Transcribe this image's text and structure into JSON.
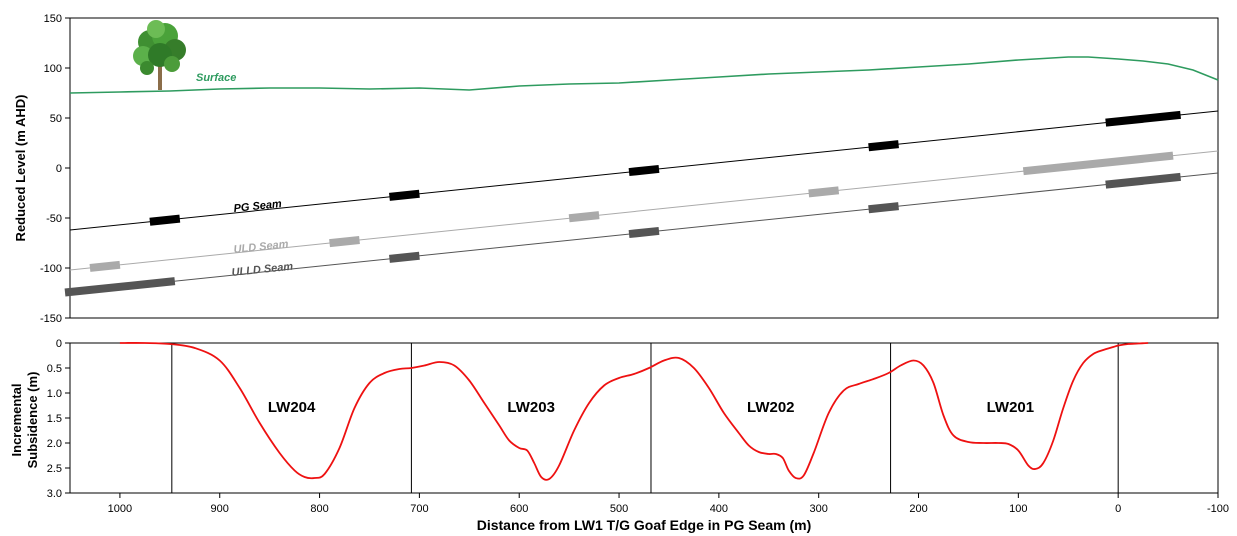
{
  "chart_data": [
    {
      "type": "line",
      "ylabel": "Reduced Level (m AHD)",
      "xlim": [
        1050,
        -100
      ],
      "ylim": [
        -150,
        150
      ],
      "y_ticks": [
        "150",
        "100",
        "50",
        "0",
        "-50",
        "-100",
        "-150"
      ],
      "series": [
        {
          "name": "Surface",
          "color": "#2e9b5f",
          "x": [
            1050,
            1000,
            950,
            900,
            850,
            800,
            750,
            700,
            650,
            600,
            550,
            500,
            450,
            400,
            350,
            300,
            250,
            200,
            150,
            100,
            50,
            30,
            0,
            -25,
            -50,
            -75,
            -100
          ],
          "y": [
            75,
            76,
            77,
            79,
            80,
            80,
            79,
            80,
            78,
            82,
            84,
            85,
            88,
            91,
            94,
            96,
            98,
            101,
            104,
            108,
            111,
            111,
            109,
            107,
            104,
            98,
            88
          ]
        },
        {
          "name": "PG Seam",
          "color": "#000000",
          "x": [
            1050,
            -100
          ],
          "y": [
            -62,
            57
          ]
        },
        {
          "name": "ULD Seam",
          "color": "#aaaaaa",
          "x": [
            1050,
            -100
          ],
          "y": [
            -102,
            17
          ]
        },
        {
          "name": "ULLD Seam",
          "color": "#555555",
          "x": [
            1050,
            -100
          ],
          "y": [
            -124,
            -5
          ]
        }
      ],
      "markers": [
        {
          "seam": "PG Seam",
          "color": "#000000",
          "x": [
            955,
            715,
            475,
            235,
            -25
          ],
          "len": [
            30,
            30,
            30,
            30,
            75
          ]
        },
        {
          "seam": "ULD Seam",
          "color": "#aaaaaa",
          "x": [
            1015,
            775,
            535,
            295,
            20
          ],
          "len": [
            30,
            30,
            30,
            30,
            150
          ]
        },
        {
          "seam": "ULLD Seam",
          "color": "#555555",
          "x": [
            1000,
            715,
            475,
            235,
            -25
          ],
          "len": [
            110,
            30,
            30,
            30,
            75
          ]
        }
      ],
      "labels": {
        "surface": "Surface",
        "pg": "PG Seam",
        "uld": "ULD Seam",
        "ulld": "ULLD Seam"
      }
    },
    {
      "type": "line",
      "xlabel": "Distance from LW1  T/G Goaf Edge in PG Seam (m)",
      "ylabel": "Incremental Subsidence (m)",
      "ylabel_lines": [
        "Incremental",
        "Subsidence (m)"
      ],
      "xlim": [
        1050,
        -100
      ],
      "ylim": [
        0,
        3.0
      ],
      "x_ticks": [
        "1000",
        "900",
        "800",
        "700",
        "600",
        "500",
        "400",
        "300",
        "200",
        "100",
        "0",
        "-100"
      ],
      "y_ticks": [
        "0",
        "0.5",
        "1.0",
        "1.5",
        "2.0",
        "2.5",
        "3.0"
      ],
      "panel_dividers": [
        948,
        708,
        468,
        228,
        0
      ],
      "panel_labels": [
        {
          "text": "LW204",
          "x": 828
        },
        {
          "text": "LW203",
          "x": 588
        },
        {
          "text": "LW202",
          "x": 348
        },
        {
          "text": "LW201",
          "x": 108
        }
      ],
      "series": [
        {
          "name": "Incremental Subsidence",
          "color": "#ee1111",
          "x": [
            1000,
            975,
            950,
            925,
            900,
            880,
            860,
            840,
            825,
            815,
            805,
            795,
            780,
            765,
            750,
            735,
            720,
            708,
            695,
            680,
            665,
            650,
            635,
            620,
            610,
            600,
            592,
            585,
            578,
            570,
            560,
            545,
            530,
            515,
            500,
            485,
            470,
            455,
            440,
            425,
            410,
            395,
            380,
            370,
            360,
            350,
            343,
            336,
            330,
            323,
            315,
            305,
            290,
            275,
            260,
            245,
            230,
            218,
            205,
            195,
            185,
            175,
            165,
            150,
            135,
            120,
            110,
            100,
            90,
            83,
            75,
            65,
            55,
            45,
            35,
            25,
            15,
            5,
            0,
            -10,
            -20,
            -30
          ],
          "y": [
            0.0,
            0.0,
            0.02,
            0.1,
            0.35,
            0.9,
            1.6,
            2.2,
            2.55,
            2.68,
            2.7,
            2.62,
            2.1,
            1.3,
            0.8,
            0.6,
            0.52,
            0.5,
            0.45,
            0.38,
            0.45,
            0.75,
            1.2,
            1.65,
            1.95,
            2.1,
            2.15,
            2.4,
            2.68,
            2.72,
            2.45,
            1.75,
            1.2,
            0.85,
            0.7,
            0.62,
            0.5,
            0.35,
            0.3,
            0.5,
            0.9,
            1.4,
            1.8,
            2.05,
            2.18,
            2.22,
            2.22,
            2.3,
            2.55,
            2.7,
            2.65,
            2.2,
            1.4,
            0.95,
            0.82,
            0.72,
            0.6,
            0.45,
            0.35,
            0.45,
            0.8,
            1.45,
            1.85,
            1.98,
            2.0,
            2.0,
            2.02,
            2.15,
            2.45,
            2.52,
            2.4,
            1.95,
            1.3,
            0.75,
            0.4,
            0.22,
            0.14,
            0.08,
            0.05,
            0.02,
            0.01,
            0.0
          ]
        }
      ]
    }
  ]
}
